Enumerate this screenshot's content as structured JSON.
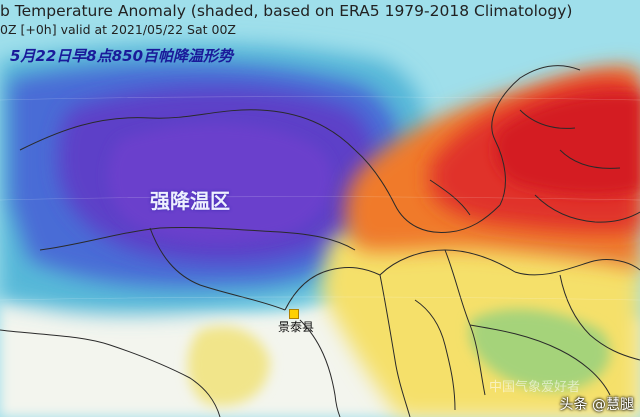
{
  "header": {
    "title": "b Temperature Anomaly (shaded, based on ERA5 1979-2018 Climatology)",
    "valid_line": "0Z [+0h] valid at 2021/05/22 Sat 00Z"
  },
  "annotation": "5月22日早8点850百帕降温形势",
  "region_label": "强降温区",
  "city": {
    "name": "景泰县",
    "marker_color": "#ffd000"
  },
  "watermark": {
    "faint_text": "中国气象爱好者",
    "account": "头条 @慧腿"
  },
  "palette": {
    "background_cool": "#9fe0ec",
    "strong_cold": "#5d3fc8",
    "cold": "#4a6cd6",
    "warm_core": "#e0302a",
    "warm": "#f07a2c",
    "neutral_light": "#f3f5ee",
    "yellow": "#f5e06a"
  }
}
